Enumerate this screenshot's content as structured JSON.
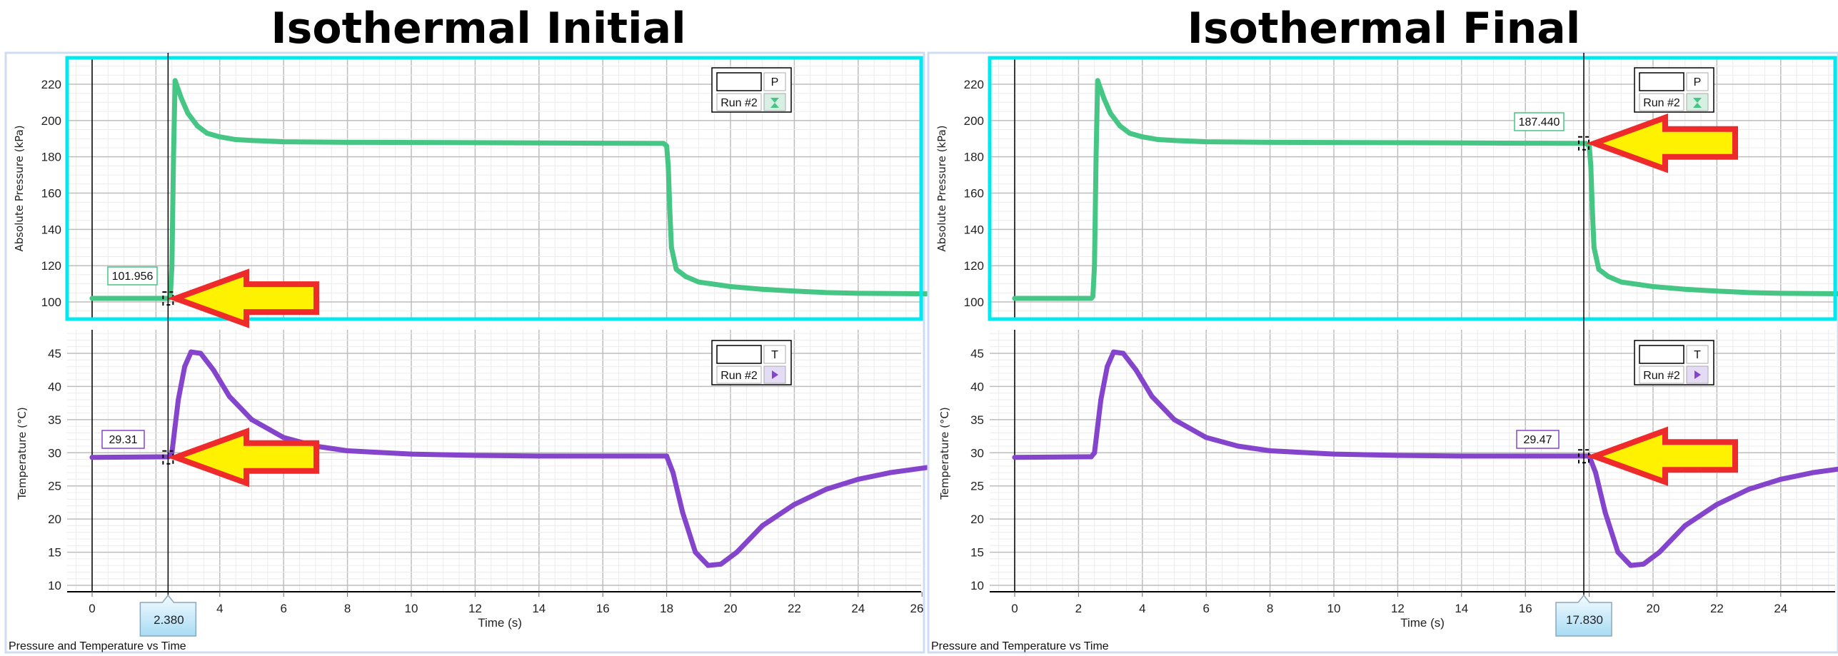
{
  "panels": [
    {
      "title": "Isothermal Initial",
      "footer": "Pressure and Temperature vs Time",
      "cursor_time_label": "2.380",
      "cursor_time": 2.38,
      "pressure_readout": "101.956",
      "pressure_value": 101.956,
      "temperature_readout": "29.31",
      "temperature_value": 29.31
    },
    {
      "title": "Isothermal Final",
      "footer": "Pressure and Temperature vs Time",
      "cursor_time_label": "17.830",
      "cursor_time": 17.83,
      "pressure_readout": "187.440",
      "pressure_value": 187.44,
      "temperature_readout": "29.47",
      "temperature_value": 29.47
    }
  ],
  "colors": {
    "pressure": "#45c684",
    "temperature": "#8544cc",
    "highlight_border": "#00e8f0",
    "arrow_fill": "#fff200",
    "arrow_stroke": "#ee2a2a"
  },
  "chart_data": [
    {
      "type": "line",
      "title": "Pressure and Temperature vs Time",
      "xlabel": "Time (s)",
      "ylabel": "Absolute Pressure (kPa)",
      "xlim": [
        -0.78,
        26.2
      ],
      "ylim": [
        90.6,
        234.6
      ],
      "xticks": [
        "0",
        "2",
        "4",
        "6",
        "8",
        "10",
        "12",
        "14",
        "16",
        "18",
        "20",
        "22",
        "24",
        "26"
      ],
      "yticks": [
        "100",
        "120",
        "140",
        "160",
        "180",
        "200",
        "220"
      ],
      "grid": true,
      "legend": {
        "placement": "top-right",
        "measurement": "P",
        "run": "Run #2"
      },
      "series": [
        {
          "name": "Run #2",
          "points": [
            [
              0,
              102
            ],
            [
              2.4,
              102
            ],
            [
              2.45,
              103
            ],
            [
              2.5,
              120
            ],
            [
              2.55,
              180
            ],
            [
              2.6,
              222
            ],
            [
              2.8,
              212
            ],
            [
              3.0,
              204
            ],
            [
              3.3,
              197
            ],
            [
              3.6,
              193
            ],
            [
              4,
              191
            ],
            [
              4.5,
              189.5
            ],
            [
              5,
              189
            ],
            [
              6,
              188.3
            ],
            [
              8,
              188
            ],
            [
              12,
              187.8
            ],
            [
              16,
              187.5
            ],
            [
              17.9,
              187.4
            ],
            [
              18.0,
              186
            ],
            [
              18.05,
              175
            ],
            [
              18.1,
              150
            ],
            [
              18.15,
              130
            ],
            [
              18.3,
              118
            ],
            [
              18.6,
              114
            ],
            [
              19,
              111
            ],
            [
              20,
              108.5
            ],
            [
              21,
              107
            ],
            [
              22,
              106
            ],
            [
              23,
              105.2
            ],
            [
              24,
              104.8
            ],
            [
              26.2,
              104.5
            ]
          ]
        }
      ]
    },
    {
      "type": "line",
      "title": "Pressure and Temperature vs Time",
      "xlabel": "Time (s)",
      "ylabel": "Temperature (°C)",
      "xlim": [
        -0.78,
        26.2
      ],
      "ylim": [
        9.0,
        48.6
      ],
      "xticks": [
        "0",
        "2",
        "4",
        "6",
        "8",
        "10",
        "12",
        "14",
        "16",
        "18",
        "20",
        "22",
        "24",
        "26"
      ],
      "yticks": [
        "10",
        "15",
        "20",
        "25",
        "30",
        "35",
        "40",
        "45"
      ],
      "grid": true,
      "legend": {
        "placement": "top-right",
        "measurement": "T",
        "run": "Run #2"
      },
      "series": [
        {
          "name": "Run #2",
          "points": [
            [
              0,
              29.3
            ],
            [
              2.4,
              29.4
            ],
            [
              2.5,
              30
            ],
            [
              2.7,
              38
            ],
            [
              2.9,
              43
            ],
            [
              3.1,
              45.2
            ],
            [
              3.4,
              45
            ],
            [
              3.8,
              42.5
            ],
            [
              4.3,
              38.5
            ],
            [
              5,
              35
            ],
            [
              6,
              32.3
            ],
            [
              7,
              31
            ],
            [
              8,
              30.3
            ],
            [
              10,
              29.8
            ],
            [
              12,
              29.6
            ],
            [
              14,
              29.5
            ],
            [
              18,
              29.5
            ],
            [
              18.2,
              27
            ],
            [
              18.5,
              21
            ],
            [
              18.9,
              15
            ],
            [
              19.3,
              13
            ],
            [
              19.7,
              13.2
            ],
            [
              20.2,
              15
            ],
            [
              21,
              19
            ],
            [
              22,
              22.2
            ],
            [
              23,
              24.5
            ],
            [
              24,
              26
            ],
            [
              25,
              27
            ],
            [
              26.2,
              27.8
            ]
          ]
        }
      ]
    }
  ]
}
